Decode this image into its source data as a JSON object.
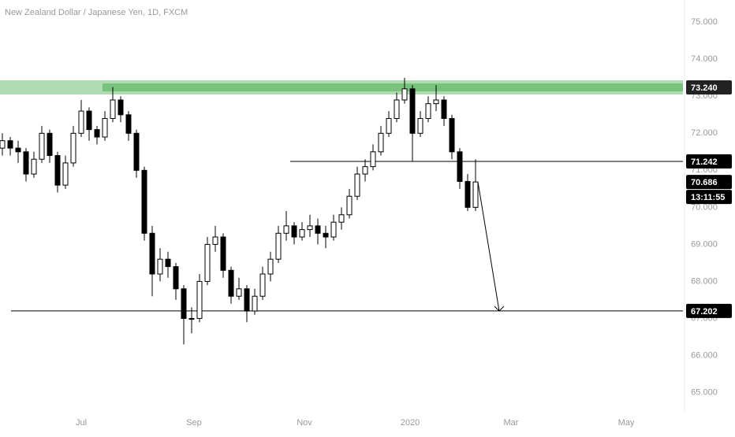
{
  "chart_data": {
    "type": "candlestick",
    "title": "New Zealand Dollar / Japanese Yen, 1D, FXCM",
    "up_color": "#ffffff",
    "down_color": "#000000",
    "ohlc": [
      [
        71.6,
        72.0,
        71.4,
        71.8
      ],
      [
        71.8,
        71.9,
        71.4,
        71.6
      ],
      [
        71.6,
        71.8,
        71.2,
        71.5
      ],
      [
        71.5,
        71.6,
        70.7,
        70.9
      ],
      [
        70.9,
        71.5,
        70.8,
        71.3
      ],
      [
        71.3,
        72.2,
        71.2,
        72.0
      ],
      [
        72.0,
        72.1,
        71.2,
        71.4
      ],
      [
        71.4,
        71.5,
        70.4,
        70.6
      ],
      [
        70.6,
        71.4,
        70.5,
        71.2
      ],
      [
        71.2,
        72.2,
        71.1,
        72.0
      ],
      [
        72.0,
        72.9,
        71.9,
        72.6
      ],
      [
        72.6,
        72.7,
        71.8,
        72.1
      ],
      [
        72.1,
        72.2,
        71.7,
        71.9
      ],
      [
        71.9,
        72.6,
        71.8,
        72.4
      ],
      [
        72.4,
        73.25,
        72.3,
        72.9
      ],
      [
        72.9,
        73.0,
        72.3,
        72.5
      ],
      [
        72.5,
        72.6,
        71.8,
        72.0
      ],
      [
        72.0,
        72.1,
        70.8,
        71.0
      ],
      [
        71.0,
        71.1,
        69.1,
        69.3
      ],
      [
        69.3,
        69.5,
        67.6,
        68.2
      ],
      [
        68.2,
        68.9,
        68.0,
        68.6
      ],
      [
        68.6,
        68.8,
        68.1,
        68.4
      ],
      [
        68.4,
        68.5,
        67.5,
        67.8
      ],
      [
        67.8,
        67.9,
        66.3,
        67.0
      ],
      [
        67.0,
        67.3,
        66.6,
        67.0
      ],
      [
        67.0,
        68.2,
        66.9,
        68.0
      ],
      [
        68.0,
        69.2,
        67.9,
        69.0
      ],
      [
        69.0,
        69.5,
        68.8,
        69.2
      ],
      [
        69.2,
        69.3,
        68.1,
        68.3
      ],
      [
        68.3,
        68.4,
        67.4,
        67.6
      ],
      [
        67.6,
        68.1,
        67.5,
        67.8
      ],
      [
        67.8,
        67.9,
        66.9,
        67.2
      ],
      [
        67.2,
        67.8,
        67.1,
        67.6
      ],
      [
        67.6,
        68.4,
        67.5,
        68.2
      ],
      [
        68.2,
        68.8,
        68.0,
        68.6
      ],
      [
        68.6,
        69.5,
        68.5,
        69.3
      ],
      [
        69.3,
        69.9,
        69.1,
        69.5
      ],
      [
        69.5,
        69.6,
        69.0,
        69.2
      ],
      [
        69.2,
        69.6,
        69.1,
        69.4
      ],
      [
        69.4,
        69.8,
        69.2,
        69.5
      ],
      [
        69.5,
        69.7,
        69.0,
        69.3
      ],
      [
        69.3,
        69.5,
        68.9,
        69.2
      ],
      [
        69.2,
        69.8,
        69.1,
        69.6
      ],
      [
        69.6,
        70.0,
        69.4,
        69.8
      ],
      [
        69.8,
        70.5,
        69.7,
        70.3
      ],
      [
        70.3,
        71.1,
        70.2,
        70.9
      ],
      [
        70.9,
        71.3,
        70.7,
        71.1
      ],
      [
        71.1,
        71.7,
        71.0,
        71.5
      ],
      [
        71.5,
        72.2,
        71.4,
        72.0
      ],
      [
        72.0,
        72.6,
        71.9,
        72.4
      ],
      [
        72.4,
        73.1,
        72.3,
        72.9
      ],
      [
        72.9,
        73.5,
        72.8,
        73.2
      ],
      [
        73.2,
        73.3,
        71.25,
        72.0
      ],
      [
        72.0,
        72.6,
        71.9,
        72.4
      ],
      [
        72.4,
        73.0,
        72.3,
        72.8
      ],
      [
        72.8,
        73.3,
        72.6,
        72.9
      ],
      [
        72.9,
        73.0,
        72.2,
        72.4
      ],
      [
        72.4,
        72.5,
        71.3,
        71.5
      ],
      [
        71.5,
        71.6,
        70.5,
        70.7
      ],
      [
        70.7,
        70.9,
        69.9,
        70.0
      ],
      [
        70.0,
        71.3,
        69.9,
        70.686
      ]
    ],
    "xlim": [
      -0.3,
      86.3
    ],
    "xticks": [
      {
        "value": 10,
        "label": "Jul"
      },
      {
        "value": 24.3,
        "label": "Sep"
      },
      {
        "value": 38.3,
        "label": "Nov"
      },
      {
        "value": 51.7,
        "label": "2020"
      },
      {
        "value": 64.5,
        "label": "Mar"
      },
      {
        "value": 79.1,
        "label": "May"
      }
    ],
    "ylim": [
      64.5,
      75.6
    ],
    "yticks": [
      {
        "value": 65,
        "label": "65.000"
      },
      {
        "value": 66,
        "label": "66.000"
      },
      {
        "value": 67,
        "label": "67.000"
      },
      {
        "value": 68,
        "label": "68.000"
      },
      {
        "value": 69,
        "label": "69.000"
      },
      {
        "value": 70,
        "label": "70.000"
      },
      {
        "value": 71,
        "label": "71.000"
      },
      {
        "value": 72,
        "label": "72.000"
      },
      {
        "value": 73,
        "label": "73.000"
      },
      {
        "value": 74,
        "label": "74.000"
      },
      {
        "value": 75,
        "label": "75.000"
      }
    ],
    "levels": [
      {
        "value": 73.24,
        "label": "73.240",
        "color": "#4caf50"
      },
      {
        "value": 71.242,
        "label": "71.242",
        "color": "#000000"
      },
      {
        "value": 67.202,
        "label": "67.202",
        "color": "#000000"
      }
    ],
    "last_price": {
      "value": 70.686,
      "label": "70.686"
    },
    "countdown": "13:11:55"
  }
}
